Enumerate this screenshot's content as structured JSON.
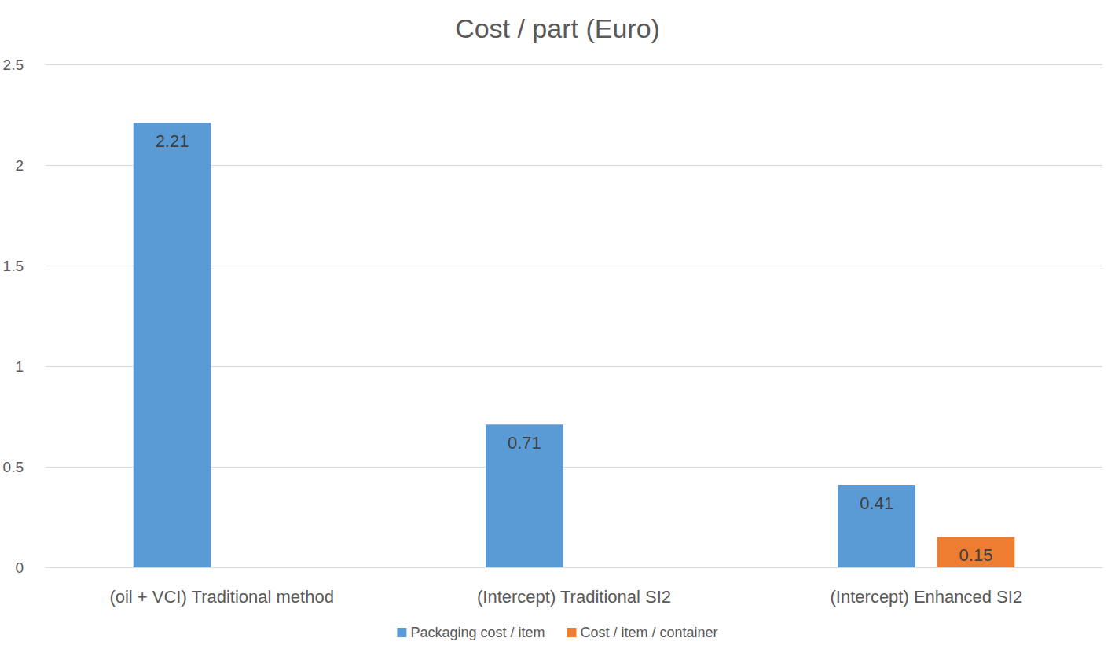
{
  "chart_data": {
    "type": "bar",
    "title": "Cost / part (Euro)",
    "categories": [
      "(oil + VCI) Traditional method",
      "(Intercept) Traditional SI2",
      "(Intercept) Enhanced SI2"
    ],
    "series": [
      {
        "name": "Packaging cost / item",
        "color": "#5b9bd5",
        "values": [
          2.21,
          0.71,
          0.41
        ]
      },
      {
        "name": "Cost / item / container",
        "color": "#ed7d31",
        "values": [
          null,
          null,
          0.15
        ]
      }
    ],
    "ylim": [
      0,
      2.5
    ],
    "yticks": [
      0,
      0.5,
      1,
      1.5,
      2,
      2.5
    ],
    "grid": true,
    "legend": "bottom",
    "data_labels": true
  }
}
